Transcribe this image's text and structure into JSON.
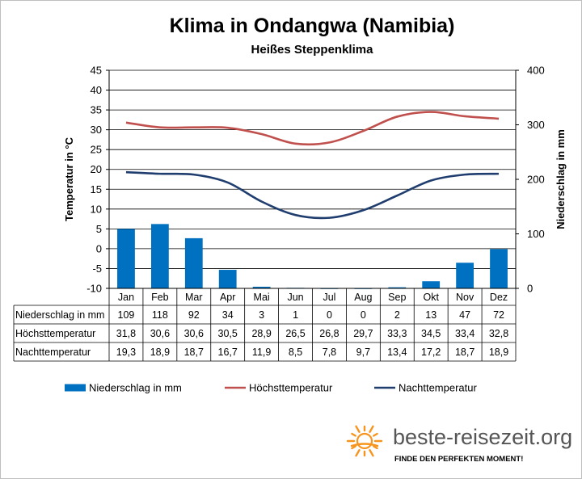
{
  "chart_data": {
    "type": "bar+line",
    "title": "Klima in Ondangwa (Namibia)",
    "subtitle": "Heißes Steppenklima",
    "ylabel_left": "Temperatur in °C",
    "ylabel_right": "Niederschlag in mm",
    "ylim_left": [
      -10,
      45
    ],
    "ylim_right": [
      0,
      400
    ],
    "yticks_left": [
      "45",
      "40",
      "35",
      "30",
      "25",
      "20",
      "15",
      "10",
      "5",
      "0",
      "-5",
      "-10"
    ],
    "yticks_right": [
      "400",
      "300",
      "200",
      "100",
      "0"
    ],
    "categories": [
      "Jan",
      "Feb",
      "Mar",
      "Apr",
      "Mai",
      "Jun",
      "Jul",
      "Aug",
      "Sep",
      "Okt",
      "Nov",
      "Dez"
    ],
    "series": [
      {
        "name": "Niederschlag in mm",
        "kind": "bar",
        "axis": "right",
        "color": "#0070c0",
        "values": [
          109,
          118,
          92,
          34,
          3,
          1,
          0,
          0,
          2,
          13,
          47,
          72
        ],
        "labels": [
          "109",
          "118",
          "92",
          "34",
          "3",
          "1",
          "0",
          "0",
          "2",
          "13",
          "47",
          "72"
        ]
      },
      {
        "name": "Höchsttemperatur",
        "kind": "line",
        "axis": "left",
        "color": "#c0504d",
        "values": [
          31.8,
          30.6,
          30.6,
          30.5,
          28.9,
          26.5,
          26.8,
          29.7,
          33.3,
          34.5,
          33.4,
          32.8
        ],
        "labels": [
          "31,8",
          "30,6",
          "30,6",
          "30,5",
          "28,9",
          "26,5",
          "26,8",
          "29,7",
          "33,3",
          "34,5",
          "33,4",
          "32,8"
        ]
      },
      {
        "name": "Nachttemperatur",
        "kind": "line",
        "axis": "left",
        "color": "#1f3d6e",
        "values": [
          19.3,
          18.9,
          18.7,
          16.7,
          11.9,
          8.5,
          7.8,
          9.7,
          13.4,
          17.2,
          18.7,
          18.9
        ],
        "labels": [
          "19,3",
          "18,9",
          "18,7",
          "16,7",
          "11,9",
          "8,5",
          "7,8",
          "9,7",
          "13,4",
          "17,2",
          "18,7",
          "18,9"
        ]
      }
    ],
    "grid": true,
    "legend": "bottom"
  },
  "branding": {
    "name": "beste-reisezeit.org",
    "slogan": "FINDE DEN PERFEKTEN MOMENT!",
    "accent": "#f7941d"
  }
}
